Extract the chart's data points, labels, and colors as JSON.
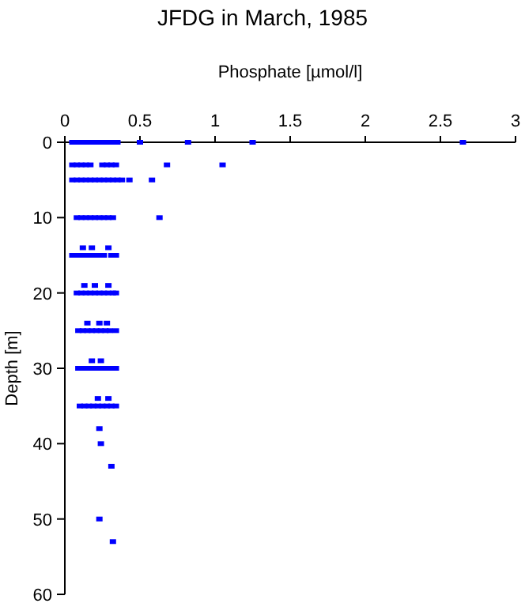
{
  "chart_data": {
    "type": "scatter",
    "title": "JFDG in March, 1985",
    "xlabel": "Phosphate [µmol/l]",
    "ylabel": "Depth [m]",
    "xlim": [
      0,
      3
    ],
    "xticks": [
      0,
      0.5,
      1,
      1.5,
      2,
      2.5,
      3
    ],
    "ylim": [
      60,
      0
    ],
    "yticks": [
      0,
      10,
      20,
      30,
      40,
      50,
      60
    ],
    "grid": false,
    "marker": "square",
    "series": [
      {
        "color": "#0000ff",
        "x": [
          0.05,
          0.08,
          0.11,
          0.14,
          0.17,
          0.2,
          0.23,
          0.26,
          0.29,
          0.32,
          0.35,
          0.5,
          0.82,
          1.25,
          2.65,
          0.05,
          0.08,
          0.11,
          0.14,
          0.17,
          0.25,
          0.28,
          0.31,
          0.34,
          0.68,
          1.05,
          0.05,
          0.08,
          0.11,
          0.14,
          0.17,
          0.2,
          0.23,
          0.26,
          0.29,
          0.32,
          0.35,
          0.38,
          0.43,
          0.58,
          0.08,
          0.11,
          0.14,
          0.17,
          0.2,
          0.23,
          0.26,
          0.29,
          0.32,
          0.63,
          0.12,
          0.18,
          0.29,
          0.05,
          0.08,
          0.11,
          0.14,
          0.17,
          0.2,
          0.23,
          0.26,
          0.31,
          0.34,
          0.13,
          0.2,
          0.29,
          0.08,
          0.11,
          0.14,
          0.17,
          0.2,
          0.23,
          0.26,
          0.29,
          0.32,
          0.34,
          0.15,
          0.23,
          0.28,
          0.09,
          0.12,
          0.15,
          0.18,
          0.21,
          0.24,
          0.27,
          0.3,
          0.34,
          0.18,
          0.24,
          0.09,
          0.12,
          0.15,
          0.18,
          0.21,
          0.24,
          0.27,
          0.3,
          0.34,
          0.22,
          0.29,
          0.1,
          0.13,
          0.16,
          0.19,
          0.22,
          0.25,
          0.28,
          0.31,
          0.34,
          0.23,
          0.24,
          0.31,
          0.23,
          0.32
        ],
        "values": [
          0,
          0,
          0,
          0,
          0,
          0,
          0,
          0,
          0,
          0,
          0,
          0,
          0,
          0,
          0,
          3,
          3,
          3,
          3,
          3,
          3,
          3,
          3,
          3,
          3,
          3,
          5,
          5,
          5,
          5,
          5,
          5,
          5,
          5,
          5,
          5,
          5,
          5,
          5,
          5,
          10,
          10,
          10,
          10,
          10,
          10,
          10,
          10,
          10,
          10,
          14,
          14,
          14,
          15,
          15,
          15,
          15,
          15,
          15,
          15,
          15,
          15,
          15,
          19,
          19,
          19,
          20,
          20,
          20,
          20,
          20,
          20,
          20,
          20,
          20,
          20,
          24,
          24,
          24,
          25,
          25,
          25,
          25,
          25,
          25,
          25,
          25,
          25,
          29,
          29,
          30,
          30,
          30,
          30,
          30,
          30,
          30,
          30,
          30,
          34,
          34,
          35,
          35,
          35,
          35,
          35,
          35,
          35,
          35,
          35,
          38,
          40,
          43,
          50,
          53
        ]
      }
    ]
  }
}
